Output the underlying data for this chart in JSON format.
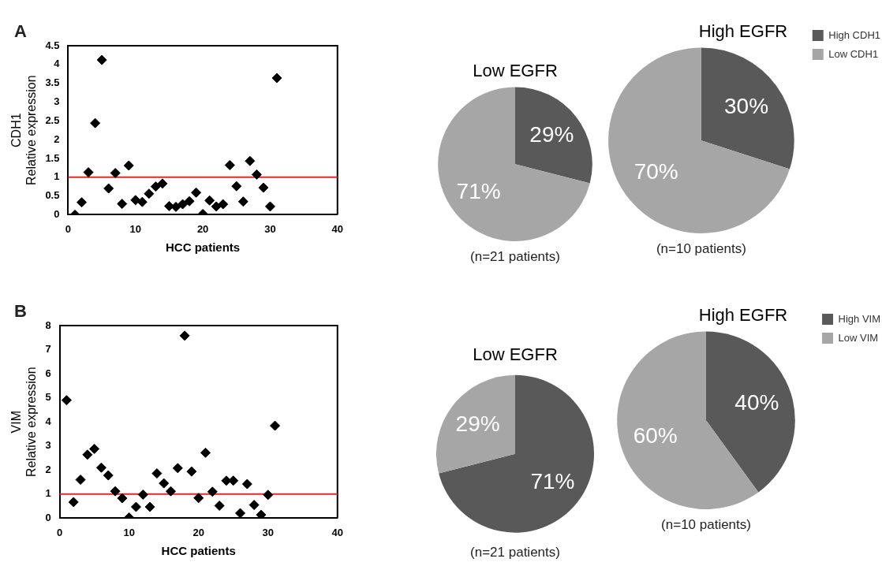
{
  "chart_data": [
    {
      "type": "scatter",
      "annotations": [
        "A"
      ],
      "xlabel": "HCC patients",
      "ylabel": "CDH1\nRelative expression",
      "x": [
        1,
        2,
        3,
        4,
        5,
        6,
        7,
        8,
        9,
        10,
        11,
        12,
        13,
        14,
        15,
        16,
        17,
        18,
        19,
        20,
        21,
        22,
        23,
        24,
        25,
        26,
        27,
        28,
        29,
        30,
        31
      ],
      "values": [
        0,
        0.33,
        1.13,
        2.44,
        4.12,
        0.7,
        1.11,
        0.29,
        1.31,
        0.39,
        0.34,
        0.56,
        0.75,
        0.83,
        0.23,
        0.21,
        0.28,
        0.36,
        0.59,
        0.02,
        0.38,
        0.22,
        0.28,
        1.32,
        0.76,
        0.35,
        1.43,
        1.07,
        0.72,
        0.22,
        3.64
      ],
      "color": "#000000",
      "marker": "diamond",
      "xlim": [
        0,
        40
      ],
      "xticks": [
        0,
        10,
        20,
        30,
        40
      ],
      "ylim": [
        0,
        4.5
      ],
      "yticks": [
        0,
        0.5,
        1,
        1.5,
        2,
        2.5,
        3,
        3.5,
        4,
        4.5
      ],
      "ref_lines": [
        {
          "axis": "y",
          "value": 1,
          "color": "#e8242b"
        }
      ]
    },
    {
      "type": "pie",
      "title": "Low EGFR",
      "categories": [
        null,
        null
      ],
      "values": [
        29,
        71
      ],
      "colors": [
        "#595959",
        "#a6a6a6"
      ],
      "value_labels": [
        "29%",
        "71%"
      ],
      "annotations": [
        "(n=21 patients)"
      ]
    },
    {
      "type": "pie",
      "title": "High EGFR",
      "categories": [
        "High CDH1",
        "Low CDH1"
      ],
      "values": [
        30,
        70
      ],
      "colors": [
        "#595959",
        "#a6a6a6"
      ],
      "value_labels": [
        "30%",
        "70%"
      ],
      "annotations": [
        "(n=10 patients)"
      ],
      "legend": "right"
    },
    {
      "type": "scatter",
      "annotations": [
        "B"
      ],
      "xlabel": "HCC patients",
      "ylabel": "VIM\nRelative expression",
      "x": [
        1,
        2,
        3,
        4,
        5,
        6,
        7,
        8,
        9,
        10,
        11,
        12,
        13,
        14,
        15,
        16,
        17,
        18,
        19,
        20,
        21,
        22,
        23,
        24,
        25,
        26,
        27,
        28,
        29,
        30,
        31
      ],
      "values": [
        4.9,
        0.67,
        1.6,
        2.64,
        2.88,
        2.1,
        1.78,
        1.12,
        0.83,
        0.03,
        0.47,
        0.98,
        0.47,
        1.86,
        1.45,
        1.12,
        2.08,
        7.58,
        1.94,
        0.84,
        2.72,
        1.1,
        0.52,
        1.56,
        1.56,
        0.21,
        1.42,
        0.55,
        0.14,
        0.97,
        3.84
      ],
      "color": "#000000",
      "marker": "diamond",
      "xlim": [
        0,
        40
      ],
      "xticks": [
        0,
        10,
        20,
        30,
        40
      ],
      "ylim": [
        0,
        8
      ],
      "yticks": [
        0,
        1,
        2,
        3,
        4,
        5,
        6,
        7,
        8
      ],
      "ref_lines": [
        {
          "axis": "y",
          "value": 1,
          "color": "#e8242b"
        }
      ]
    },
    {
      "type": "pie",
      "title": "Low EGFR",
      "categories": [
        null,
        null
      ],
      "values": [
        71,
        29
      ],
      "colors": [
        "#595959",
        "#a6a6a6"
      ],
      "value_labels": [
        "71%",
        "29%"
      ],
      "annotations": [
        "(n=21 patients)"
      ]
    },
    {
      "type": "pie",
      "title": "High EGFR",
      "categories": [
        "High VIM",
        "Low VIM"
      ],
      "values": [
        40,
        60
      ],
      "colors": [
        "#595959",
        "#a6a6a6"
      ],
      "value_labels": [
        "40%",
        "60%"
      ],
      "annotations": [
        "(n=10 patients)"
      ],
      "legend": "right"
    }
  ]
}
